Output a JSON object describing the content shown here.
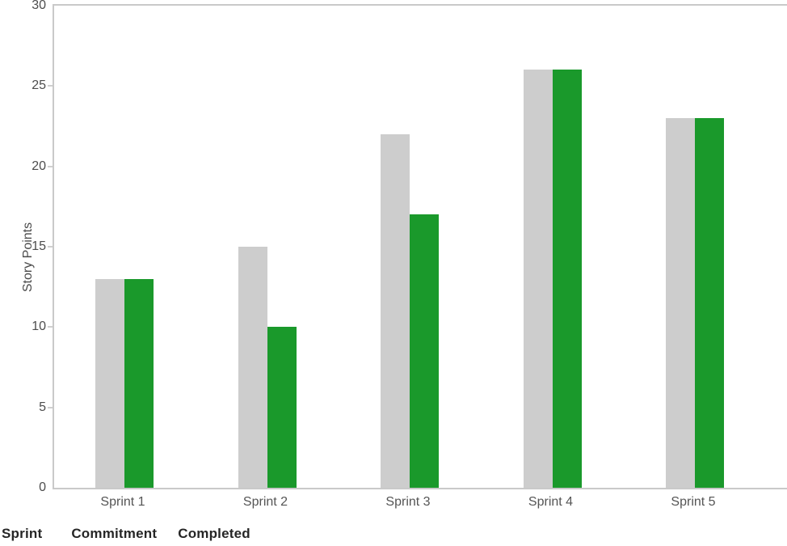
{
  "chart_data": {
    "type": "bar",
    "categories": [
      "Sprint 1",
      "Sprint 2",
      "Sprint 3",
      "Sprint 4",
      "Sprint 5"
    ],
    "series": [
      {
        "name": "Commitment",
        "color": "#cdcdcd",
        "values": [
          13,
          15,
          22,
          26,
          23
        ]
      },
      {
        "name": "Completed",
        "color": "#1a992b",
        "values": [
          13,
          10,
          17,
          26,
          23
        ]
      }
    ],
    "title": "",
    "xlabel": "",
    "ylabel": "Story Points",
    "ylim": [
      0,
      30
    ],
    "yticks": [
      0,
      5,
      10,
      15,
      20,
      25,
      30
    ],
    "grid": "off",
    "legend_position": "none"
  },
  "footer": {
    "labels": [
      "Sprint",
      "Commitment",
      "Completed"
    ]
  },
  "colors": {
    "background": "#ffffff",
    "axis": "#c9c9c9",
    "tick_mark": "#cfcfcf",
    "tick_text": "#4d4d4d",
    "bar_commitment": "#cdcdcd",
    "bar_completed": "#1a992b",
    "footer_text": "#262626"
  }
}
